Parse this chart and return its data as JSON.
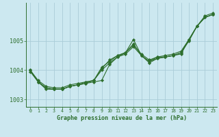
{
  "xlabel": "Graphe pression niveau de la mer (hPa)",
  "background_color": "#cce8f0",
  "grid_color": "#aaccd8",
  "line_color": "#2d6e2d",
  "marker_color": "#2d6e2d",
  "xlim": [
    -0.5,
    23.5
  ],
  "ylim": [
    1002.75,
    1006.3
  ],
  "yticks": [
    1003,
    1004,
    1005
  ],
  "xticks": [
    0,
    1,
    2,
    3,
    4,
    5,
    6,
    7,
    8,
    9,
    10,
    11,
    12,
    13,
    14,
    15,
    16,
    17,
    18,
    19,
    20,
    21,
    22,
    23
  ],
  "series": [
    [
      1004.0,
      1003.65,
      1003.45,
      1003.4,
      1003.4,
      1003.5,
      1003.55,
      1003.6,
      1003.65,
      1004.05,
      1004.35,
      1004.5,
      1004.6,
      1004.85,
      1004.55,
      1004.35,
      1004.45,
      1004.5,
      1004.55,
      1004.65,
      1005.05,
      1005.5,
      1005.85,
      1005.95
    ],
    [
      1003.95,
      1003.6,
      1003.35,
      1003.35,
      1003.35,
      1003.45,
      1003.5,
      1003.55,
      1003.6,
      1003.65,
      1004.2,
      1004.45,
      1004.6,
      1005.05,
      1004.5,
      1004.3,
      1004.45,
      1004.45,
      1004.5,
      1004.55,
      1005.05,
      1005.5,
      1005.8,
      1005.9
    ],
    [
      1004.0,
      1003.6,
      1003.4,
      1003.35,
      1003.35,
      1003.45,
      1003.5,
      1003.55,
      1003.65,
      1004.0,
      1004.25,
      1004.45,
      1004.55,
      1004.8,
      1004.5,
      1004.3,
      1004.4,
      1004.45,
      1004.5,
      1004.6,
      1005.05,
      1005.5,
      1005.8,
      1005.9
    ],
    [
      1004.0,
      1003.6,
      1003.4,
      1003.35,
      1003.35,
      1003.45,
      1003.5,
      1003.6,
      1003.65,
      1004.1,
      1004.3,
      1004.5,
      1004.6,
      1004.9,
      1004.5,
      1004.25,
      1004.4,
      1004.45,
      1004.5,
      1004.6,
      1005.0,
      1005.5,
      1005.8,
      1005.9
    ]
  ]
}
